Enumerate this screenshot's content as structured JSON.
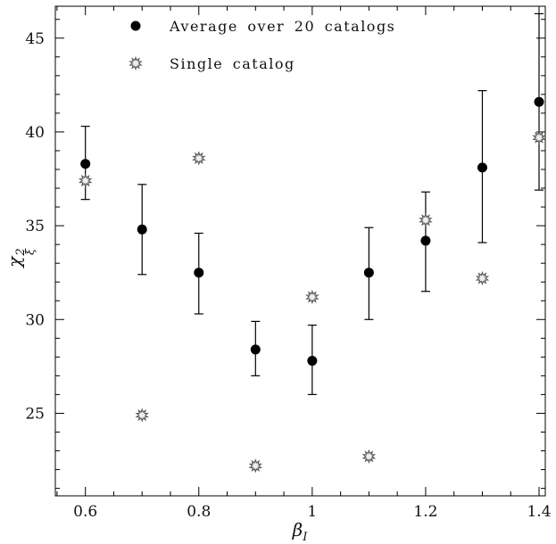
{
  "chart_data": {
    "type": "scatter",
    "title": "",
    "xlabel": {
      "base": "β",
      "sub": "I"
    },
    "ylabel": {
      "base": "χ",
      "sup": "2",
      "sub": "ξ"
    },
    "xlim": [
      0.547,
      1.411
    ],
    "ylim": [
      20.6,
      46.7
    ],
    "x_major_ticks": [
      0.6,
      0.8,
      1.0,
      1.2,
      1.4
    ],
    "x_tick_labels": [
      "0.6",
      "0.8",
      "1",
      "1.2",
      "1.4"
    ],
    "x_minor_step": 0.05,
    "y_major_ticks": [
      25,
      30,
      35,
      40,
      45
    ],
    "y_tick_labels": [
      "25",
      "30",
      "35",
      "40",
      "45"
    ],
    "y_minor_step": 1,
    "grid": false,
    "legend_position": "top-left-inside",
    "marker_colors": {
      "average": "#000000",
      "single_stroke": "#555555",
      "single_fill": "#eeeeee"
    },
    "series": [
      {
        "name": "Average over 20 catalogs",
        "marker": "filled-circle",
        "x": [
          0.6,
          0.7,
          0.8,
          0.9,
          1.0,
          1.1,
          1.2,
          1.3,
          1.4
        ],
        "y": [
          38.3,
          34.8,
          32.5,
          28.4,
          27.8,
          32.5,
          34.2,
          38.1,
          41.6
        ],
        "err_low": [
          1.9,
          2.4,
          2.2,
          1.4,
          1.8,
          2.5,
          2.7,
          4.0,
          4.7
        ],
        "err_high": [
          2.0,
          2.4,
          2.1,
          1.5,
          1.9,
          2.4,
          2.6,
          4.1,
          4.7
        ]
      },
      {
        "name": "Single catalog",
        "marker": "open-star",
        "x": [
          0.6,
          0.7,
          0.8,
          0.9,
          1.0,
          1.1,
          1.2,
          1.3,
          1.4
        ],
        "y": [
          37.4,
          24.9,
          38.6,
          22.2,
          31.2,
          22.7,
          35.3,
          32.2,
          39.7
        ]
      }
    ]
  }
}
